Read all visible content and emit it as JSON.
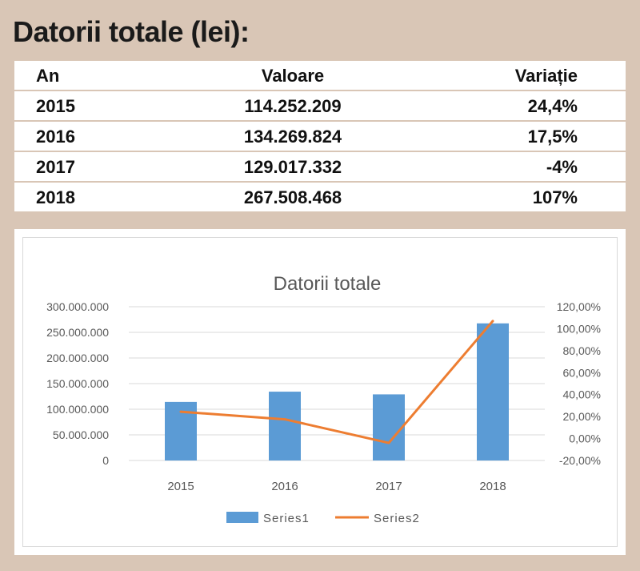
{
  "heading": "Datorii totale (lei):",
  "table": {
    "headers": [
      "An",
      "Valoare",
      "Variație"
    ],
    "rows": [
      [
        "2015",
        "114.252.209",
        "24,4%"
      ],
      [
        "2016",
        "134.269.824",
        "17,5%"
      ],
      [
        "2017",
        "129.017.332",
        "-4%"
      ],
      [
        "2018",
        "267.508.468",
        "107%"
      ]
    ]
  },
  "colors": {
    "background": "#d9c6b6",
    "series1": "#5b9bd5",
    "series2": "#ed7d31",
    "gridline": "#d9d9d9",
    "axis_text": "#595959"
  },
  "chart_data": {
    "type": "bar",
    "title": "Datorii totale",
    "categories": [
      "2015",
      "2016",
      "2017",
      "2018"
    ],
    "series": [
      {
        "name": "Series1",
        "type": "bar",
        "axis": "left",
        "values": [
          114252209,
          134269824,
          129017332,
          267508468
        ]
      },
      {
        "name": "Series2",
        "type": "line",
        "axis": "right",
        "values": [
          0.244,
          0.175,
          -0.04,
          1.07
        ]
      }
    ],
    "y_left": {
      "ylim": [
        0,
        300000000
      ],
      "ticks": [
        0,
        50000000,
        100000000,
        150000000,
        200000000,
        250000000,
        300000000
      ],
      "tick_labels": [
        "0",
        "50.000.000",
        "100.000.000",
        "150.000.000",
        "200.000.000",
        "250.000.000",
        "300.000.000"
      ]
    },
    "y_right": {
      "ylim": [
        -0.2,
        1.2
      ],
      "ticks": [
        -0.2,
        0,
        0.2,
        0.4,
        0.6,
        0.8,
        1.0,
        1.2
      ],
      "tick_labels": [
        "-20,00%",
        "0,00%",
        "20,00%",
        "40,00%",
        "60,00%",
        "80,00%",
        "100,00%",
        "120,00%"
      ]
    },
    "grid": true,
    "legend": "bottom",
    "xlabel": "",
    "ylabel": ""
  }
}
